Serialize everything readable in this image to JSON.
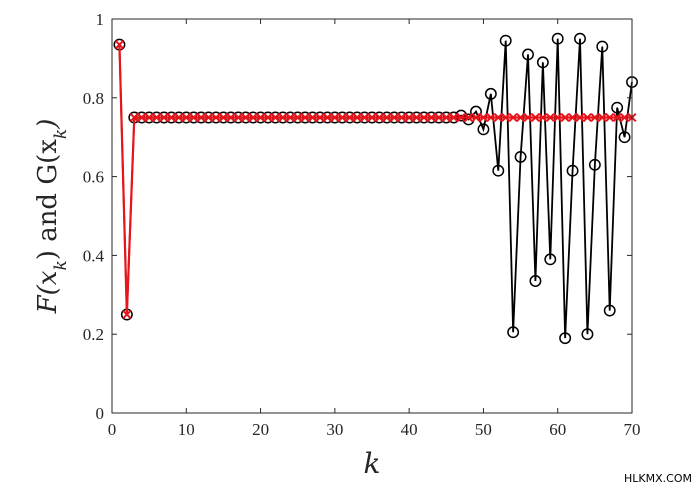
{
  "watermark": "HLKMX.COM",
  "chart_data": {
    "type": "line",
    "xlabel": "k",
    "ylabel": "F(x_k) and G(x_k)",
    "xlim": [
      0,
      70
    ],
    "ylim": [
      0,
      1
    ],
    "xticks": [
      0,
      10,
      20,
      30,
      40,
      50,
      60,
      70
    ],
    "yticks": [
      0,
      0.2,
      0.4,
      0.6,
      0.8,
      1
    ],
    "ytick_labels": [
      "0",
      "0.2",
      "0.4",
      "0.6",
      "0.8",
      "1"
    ],
    "grid": false,
    "box": true,
    "series": [
      {
        "marker": "circle",
        "color": "#000000",
        "x": [
          1,
          2,
          3,
          4,
          5,
          6,
          7,
          8,
          9,
          10,
          11,
          12,
          13,
          14,
          15,
          16,
          17,
          18,
          19,
          20,
          21,
          22,
          23,
          24,
          25,
          26,
          27,
          28,
          29,
          30,
          31,
          32,
          33,
          34,
          35,
          36,
          37,
          38,
          39,
          40,
          41,
          42,
          43,
          44,
          45,
          46,
          47,
          48,
          49,
          50,
          51,
          52,
          53,
          54,
          55,
          56,
          57,
          58,
          59,
          60,
          61,
          62,
          63,
          64,
          65,
          66,
          67,
          68,
          69,
          70
        ],
        "values": [
          0.935,
          0.25,
          0.75,
          0.75,
          0.75,
          0.75,
          0.75,
          0.75,
          0.75,
          0.75,
          0.75,
          0.75,
          0.75,
          0.75,
          0.75,
          0.75,
          0.75,
          0.75,
          0.75,
          0.75,
          0.75,
          0.75,
          0.75,
          0.75,
          0.75,
          0.75,
          0.75,
          0.75,
          0.75,
          0.75,
          0.75,
          0.75,
          0.75,
          0.75,
          0.75,
          0.75,
          0.75,
          0.75,
          0.75,
          0.75,
          0.75,
          0.75,
          0.75,
          0.75,
          0.75,
          0.75,
          0.755,
          0.745,
          0.765,
          0.72,
          0.81,
          0.615,
          0.945,
          0.205,
          0.65,
          0.91,
          0.335,
          0.89,
          0.39,
          0.95,
          0.19,
          0.615,
          0.95,
          0.2,
          0.63,
          0.93,
          0.26,
          0.775,
          0.7,
          0.84
        ]
      },
      {
        "marker": "x",
        "color": "#e8141b",
        "x": [
          1,
          2,
          3,
          4,
          5,
          6,
          7,
          8,
          9,
          10,
          11,
          12,
          13,
          14,
          15,
          16,
          17,
          18,
          19,
          20,
          21,
          22,
          23,
          24,
          25,
          26,
          27,
          28,
          29,
          30,
          31,
          32,
          33,
          34,
          35,
          36,
          37,
          38,
          39,
          40,
          41,
          42,
          43,
          44,
          45,
          46,
          47,
          48,
          49,
          50,
          51,
          52,
          53,
          54,
          55,
          56,
          57,
          58,
          59,
          60,
          61,
          62,
          63,
          64,
          65,
          66,
          67,
          68,
          69,
          70
        ],
        "values": [
          0.935,
          0.25,
          0.75,
          0.75,
          0.75,
          0.75,
          0.75,
          0.75,
          0.75,
          0.75,
          0.75,
          0.75,
          0.75,
          0.75,
          0.75,
          0.75,
          0.75,
          0.75,
          0.75,
          0.75,
          0.75,
          0.75,
          0.75,
          0.75,
          0.75,
          0.75,
          0.75,
          0.75,
          0.75,
          0.75,
          0.75,
          0.75,
          0.75,
          0.75,
          0.75,
          0.75,
          0.75,
          0.75,
          0.75,
          0.75,
          0.75,
          0.75,
          0.75,
          0.75,
          0.75,
          0.75,
          0.75,
          0.75,
          0.75,
          0.75,
          0.75,
          0.75,
          0.75,
          0.75,
          0.75,
          0.75,
          0.75,
          0.75,
          0.75,
          0.75,
          0.75,
          0.75,
          0.75,
          0.75,
          0.75,
          0.75,
          0.75,
          0.75,
          0.75,
          0.75
        ]
      }
    ]
  }
}
